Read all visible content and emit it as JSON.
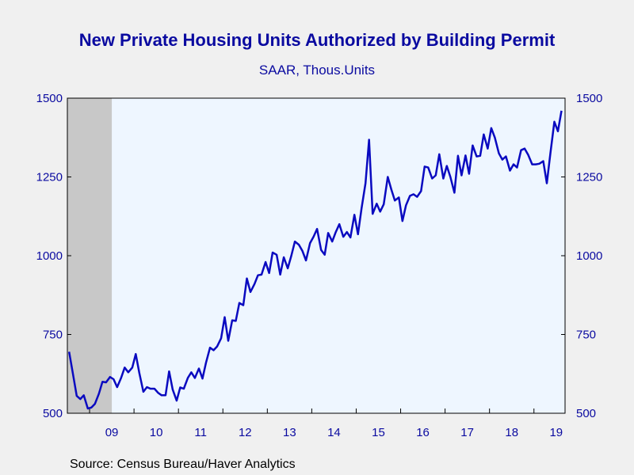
{
  "header": {
    "title": "New Private Housing Units Authorized by Building Permit",
    "subtitle": "SAAR, Thous.Units"
  },
  "footer": {
    "source": "Source:  Census Bureau/Haver Analytics"
  },
  "colors": {
    "line": "#0a0ac0",
    "text": "#0a0aa0",
    "plot_bg": "#eef6ff",
    "recession": "#c8c8c8"
  },
  "chart_data": {
    "type": "line",
    "title": "New Private Housing Units Authorized by Building Permit",
    "subtitle": "SAAR, Thous.Units",
    "ylim": [
      500,
      1500
    ],
    "yticks": [
      500,
      750,
      1000,
      1250,
      1500
    ],
    "ytick_labels": [
      "500",
      "750",
      "1000",
      "1250",
      "1500"
    ],
    "xlim": [
      "2008-07",
      "2019-06"
    ],
    "x_tick_labels": [
      "09",
      "10",
      "11",
      "12",
      "13",
      "14",
      "15",
      "16",
      "17",
      "18",
      "19"
    ],
    "grid": false,
    "recession_shading": {
      "start": "2008-07",
      "end": "2009-06"
    },
    "series": [
      {
        "values": [
          [
            2008.54,
            695
          ],
          [
            2008.62,
            630
          ],
          [
            2008.71,
            555
          ],
          [
            2008.79,
            545
          ],
          [
            2008.87,
            557
          ],
          [
            2008.96,
            515
          ],
          [
            2009.04,
            518
          ],
          [
            2009.12,
            530
          ],
          [
            2009.21,
            562
          ],
          [
            2009.29,
            600
          ],
          [
            2009.37,
            598
          ],
          [
            2009.46,
            615
          ],
          [
            2009.54,
            608
          ],
          [
            2009.62,
            583
          ],
          [
            2009.71,
            612
          ],
          [
            2009.79,
            645
          ],
          [
            2009.87,
            630
          ],
          [
            2009.96,
            645
          ],
          [
            2010.04,
            688
          ],
          [
            2010.12,
            628
          ],
          [
            2010.21,
            568
          ],
          [
            2010.29,
            583
          ],
          [
            2010.37,
            578
          ],
          [
            2010.46,
            578
          ],
          [
            2010.54,
            565
          ],
          [
            2010.62,
            557
          ],
          [
            2010.71,
            557
          ],
          [
            2010.79,
            633
          ],
          [
            2010.87,
            575
          ],
          [
            2010.96,
            540
          ],
          [
            2011.04,
            582
          ],
          [
            2011.12,
            578
          ],
          [
            2011.21,
            612
          ],
          [
            2011.29,
            630
          ],
          [
            2011.37,
            612
          ],
          [
            2011.46,
            642
          ],
          [
            2011.54,
            610
          ],
          [
            2011.62,
            660
          ],
          [
            2011.71,
            708
          ],
          [
            2011.79,
            700
          ],
          [
            2011.87,
            712
          ],
          [
            2011.96,
            738
          ],
          [
            2012.04,
            805
          ],
          [
            2012.12,
            730
          ],
          [
            2012.21,
            795
          ],
          [
            2012.29,
            793
          ],
          [
            2012.37,
            850
          ],
          [
            2012.46,
            843
          ],
          [
            2012.54,
            928
          ],
          [
            2012.62,
            885
          ],
          [
            2012.71,
            910
          ],
          [
            2012.79,
            938
          ],
          [
            2012.87,
            940
          ],
          [
            2012.96,
            980
          ],
          [
            2013.04,
            945
          ],
          [
            2013.12,
            1010
          ],
          [
            2013.21,
            1003
          ],
          [
            2013.29,
            940
          ],
          [
            2013.37,
            995
          ],
          [
            2013.46,
            960
          ],
          [
            2013.54,
            1000
          ],
          [
            2013.62,
            1045
          ],
          [
            2013.71,
            1035
          ],
          [
            2013.79,
            1015
          ],
          [
            2013.87,
            985
          ],
          [
            2013.96,
            1040
          ],
          [
            2014.04,
            1060
          ],
          [
            2014.12,
            1085
          ],
          [
            2014.21,
            1018
          ],
          [
            2014.29,
            1003
          ],
          [
            2014.37,
            1072
          ],
          [
            2014.46,
            1045
          ],
          [
            2014.54,
            1075
          ],
          [
            2014.62,
            1100
          ],
          [
            2014.71,
            1060
          ],
          [
            2014.79,
            1075
          ],
          [
            2014.87,
            1058
          ],
          [
            2014.96,
            1130
          ],
          [
            2015.04,
            1068
          ],
          [
            2015.12,
            1150
          ],
          [
            2015.21,
            1230
          ],
          [
            2015.29,
            1368
          ],
          [
            2015.37,
            1133
          ],
          [
            2015.46,
            1165
          ],
          [
            2015.54,
            1140
          ],
          [
            2015.62,
            1163
          ],
          [
            2015.71,
            1250
          ],
          [
            2015.79,
            1210
          ],
          [
            2015.87,
            1175
          ],
          [
            2015.96,
            1185
          ],
          [
            2016.04,
            1110
          ],
          [
            2016.12,
            1160
          ],
          [
            2016.21,
            1190
          ],
          [
            2016.29,
            1195
          ],
          [
            2016.37,
            1187
          ],
          [
            2016.46,
            1205
          ],
          [
            2016.54,
            1283
          ],
          [
            2016.62,
            1280
          ],
          [
            2016.71,
            1245
          ],
          [
            2016.79,
            1255
          ],
          [
            2016.87,
            1322
          ],
          [
            2016.96,
            1245
          ],
          [
            2017.04,
            1285
          ],
          [
            2017.12,
            1250
          ],
          [
            2017.21,
            1200
          ],
          [
            2017.29,
            1317
          ],
          [
            2017.37,
            1255
          ],
          [
            2017.46,
            1318
          ],
          [
            2017.54,
            1260
          ],
          [
            2017.62,
            1350
          ],
          [
            2017.71,
            1315
          ],
          [
            2017.79,
            1317
          ],
          [
            2017.87,
            1385
          ],
          [
            2017.96,
            1340
          ],
          [
            2018.04,
            1405
          ],
          [
            2018.12,
            1375
          ],
          [
            2018.21,
            1325
          ],
          [
            2018.29,
            1305
          ],
          [
            2018.37,
            1315
          ],
          [
            2018.46,
            1270
          ],
          [
            2018.54,
            1290
          ],
          [
            2018.62,
            1280
          ],
          [
            2018.71,
            1335
          ],
          [
            2018.79,
            1340
          ],
          [
            2018.87,
            1320
          ],
          [
            2018.96,
            1290
          ],
          [
            2019.04,
            1290
          ],
          [
            2019.12,
            1292
          ],
          [
            2019.21,
            1300
          ],
          [
            2019.29,
            1230
          ],
          [
            2019.37,
            1325
          ],
          [
            2019.46,
            1425
          ],
          [
            2019.54,
            1395
          ],
          [
            2019.62,
            1460
          ]
        ]
      }
    ]
  }
}
